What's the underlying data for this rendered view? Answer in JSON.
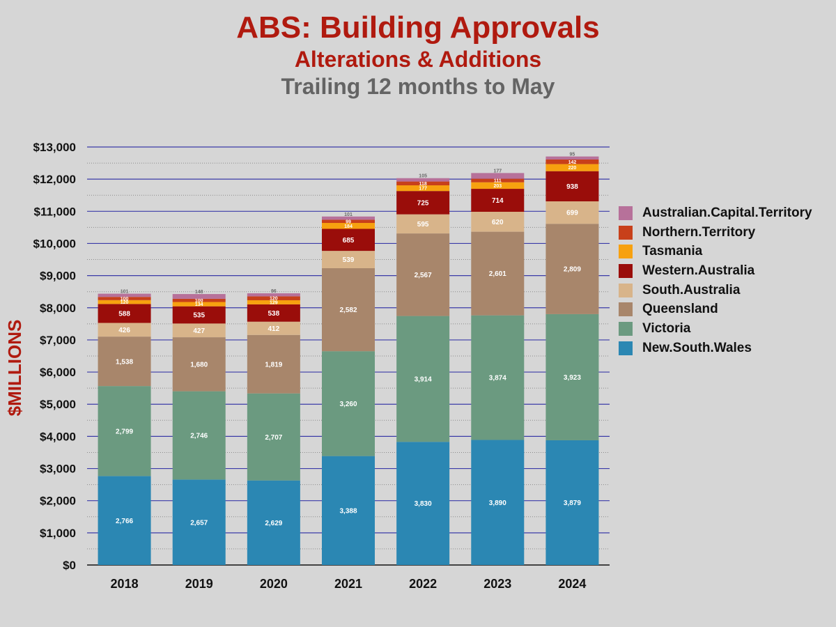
{
  "title": "ABS: Building Approvals",
  "subtitle": "Alterations & Additions",
  "subtitle2": "Trailing 12 months to May",
  "chart_data": {
    "type": "bar",
    "stacked": true,
    "title": "ABS: Building Approvals",
    "ylabel": "$MILLIONS",
    "xlabel": "",
    "ylim": [
      0,
      13000
    ],
    "yticks": [
      "$0",
      "$1,000",
      "$2,000",
      "$3,000",
      "$4,000",
      "$5,000",
      "$6,000",
      "$7,000",
      "$8,000",
      "$9,000",
      "$10,000",
      "$11,000",
      "$12,000",
      "$13,000"
    ],
    "grid": true,
    "legend_position": "right",
    "categories": [
      "2018",
      "2019",
      "2020",
      "2021",
      "2022",
      "2023",
      "2024"
    ],
    "series": [
      {
        "name": "New.South.Wales",
        "color": "#2b87b3",
        "values": [
          2766,
          2657,
          2629,
          3388,
          3830,
          3890,
          3879
        ],
        "labels": [
          "2,766",
          "2,657",
          "2,629",
          "3,388",
          "3,830",
          "3,890",
          "3,879"
        ]
      },
      {
        "name": "Victoria",
        "color": "#6b9a80",
        "values": [
          2799,
          2746,
          2707,
          3260,
          3914,
          3874,
          3923
        ],
        "labels": [
          "2,799",
          "2,746",
          "2,707",
          "3,260",
          "3,914",
          "3,874",
          "3,923"
        ]
      },
      {
        "name": "Queensland",
        "color": "#a8866b",
        "values": [
          1538,
          1680,
          1819,
          2582,
          2567,
          2601,
          2809
        ],
        "labels": [
          "1,538",
          "1,680",
          "1,819",
          "2,582",
          "2,567",
          "2,601",
          "2,809"
        ]
      },
      {
        "name": "South.Australia",
        "color": "#d8b48a",
        "values": [
          426,
          427,
          412,
          539,
          595,
          620,
          699
        ],
        "labels": [
          "426",
          "427",
          "412",
          "539",
          "595",
          "620",
          "699"
        ]
      },
      {
        "name": "Western.Australia",
        "color": "#9a0d0a",
        "values": [
          588,
          535,
          538,
          685,
          725,
          714,
          938
        ],
        "labels": [
          "588",
          "535",
          "538",
          "685",
          "725",
          "714",
          "938"
        ]
      },
      {
        "name": "Tasmania",
        "color": "#f7a10f",
        "values": [
          120,
          134,
          129,
          184,
          177,
          203,
          220
        ],
        "labels": [
          "120",
          "134",
          "129",
          "184",
          "177",
          "203",
          "220"
        ]
      },
      {
        "name": "Northern.Territory",
        "color": "#c8401a",
        "values": [
          100,
          100,
          120,
          99,
          118,
          111,
          142
        ],
        "labels": [
          "100",
          "100",
          "120",
          "99",
          "118",
          "111",
          "142"
        ]
      },
      {
        "name": "Australian.Capital.Territory",
        "color": "#b7719a",
        "values": [
          101,
          148,
          96,
          101,
          105,
          177,
          95
        ],
        "labels": [
          "101",
          "148",
          "96",
          "101",
          "105",
          "177",
          "95"
        ]
      }
    ]
  }
}
